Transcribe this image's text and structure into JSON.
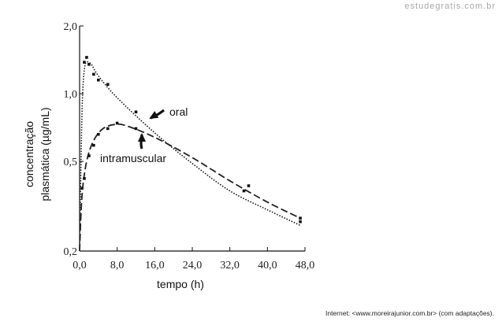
{
  "watermark": "estudegratis.com.br",
  "credit": "Internet: <www.moreirajunior.com.br> (com adaptações).",
  "chart_data": {
    "type": "line",
    "xlabel": "tempo (h)",
    "ylabel_line1": "concentração",
    "ylabel_line2": "plasmática (µg/mL)",
    "x_scale": "linear",
    "y_scale": "log",
    "xlim": [
      0,
      48
    ],
    "ylim": [
      0.2,
      2.0
    ],
    "x_ticks": [
      0,
      8,
      16,
      24,
      32,
      40,
      48
    ],
    "x_tick_labels": [
      "0,0",
      "8,0",
      "16,0",
      "24,0",
      "32,0",
      "40,0",
      "48,0"
    ],
    "y_ticks": [
      0.2,
      0.5,
      1.0,
      2.0
    ],
    "y_tick_labels": [
      "0,2",
      "0,5",
      "1,0",
      "2,0"
    ],
    "series": [
      {
        "name": "oral",
        "line_style": "dotted",
        "curve": [
          [
            0,
            0.2
          ],
          [
            0.3,
            0.5
          ],
          [
            0.6,
            0.95
          ],
          [
            1.0,
            1.28
          ],
          [
            1.5,
            1.38
          ],
          [
            2.5,
            1.35
          ],
          [
            4,
            1.2
          ],
          [
            8,
            0.96
          ],
          [
            16,
            0.67
          ],
          [
            24,
            0.49
          ],
          [
            32,
            0.37
          ],
          [
            40,
            0.305
          ],
          [
            47,
            0.26
          ]
        ],
        "points": [
          [
            1,
            1.38
          ],
          [
            1.5,
            1.45
          ],
          [
            2,
            1.35
          ],
          [
            3,
            1.22
          ],
          [
            4,
            1.15
          ],
          [
            6,
            1.1
          ],
          [
            12,
            0.83
          ],
          [
            36,
            0.39
          ],
          [
            47,
            0.27
          ]
        ]
      },
      {
        "name": "intramuscular",
        "line_style": "dashed",
        "curve": [
          [
            0,
            0.2
          ],
          [
            0.5,
            0.35
          ],
          [
            1.5,
            0.5
          ],
          [
            3,
            0.62
          ],
          [
            5,
            0.7
          ],
          [
            7.5,
            0.73
          ],
          [
            10,
            0.72
          ],
          [
            16,
            0.64
          ],
          [
            24,
            0.52
          ],
          [
            32,
            0.41
          ],
          [
            40,
            0.33
          ],
          [
            47,
            0.28
          ]
        ],
        "points": [
          [
            0.5,
            0.38
          ],
          [
            1,
            0.42
          ],
          [
            2,
            0.53
          ],
          [
            3,
            0.59
          ],
          [
            4,
            0.66
          ],
          [
            6,
            0.7
          ],
          [
            8,
            0.74
          ],
          [
            12,
            0.7
          ],
          [
            35,
            0.37
          ],
          [
            47,
            0.28
          ]
        ]
      }
    ],
    "annotations": [
      {
        "text": "oral",
        "points_to": "oral"
      },
      {
        "text": "intramuscular",
        "points_to": "intramuscular"
      }
    ]
  }
}
